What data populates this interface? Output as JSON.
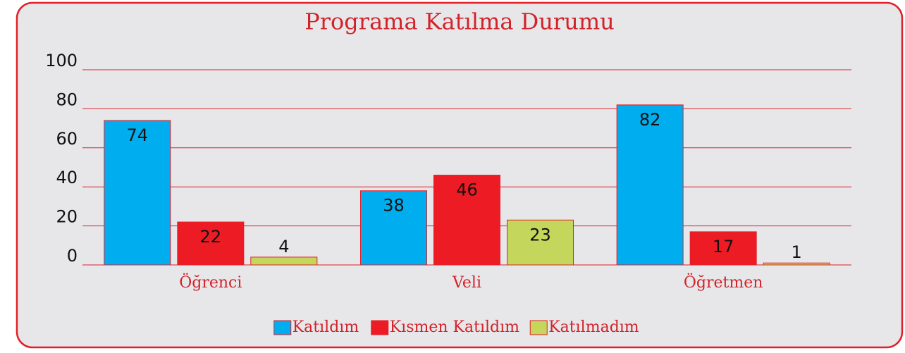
{
  "chart_data": {
    "type": "bar",
    "title": "Programa Katılma Durumu",
    "categories": [
      "Öğrenci",
      "Veli",
      "Öğretmen"
    ],
    "series": [
      {
        "name": "Katıldım",
        "color": "#00aeef",
        "values": [
          74,
          38,
          82
        ]
      },
      {
        "name": "Kısmen Katıldım",
        "color": "#ed1c24",
        "values": [
          22,
          46,
          17
        ]
      },
      {
        "name": "Katılmadım",
        "color": "#c5d65c",
        "values": [
          4,
          23,
          1
        ]
      }
    ],
    "ylim": [
      0,
      100
    ],
    "yticks": [
      0,
      20,
      40,
      60,
      80,
      100
    ],
    "grid": true,
    "legend": "bottom"
  }
}
